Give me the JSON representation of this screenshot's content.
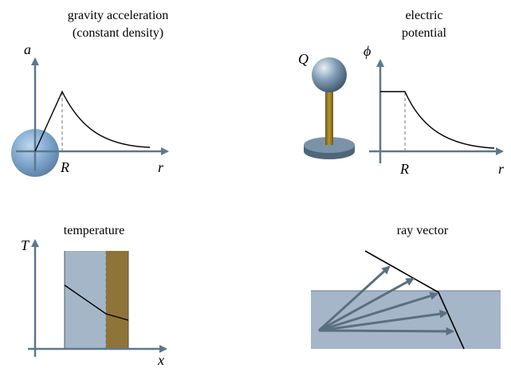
{
  "panels": [
    {
      "title_lines": [
        "gravity acceleration",
        "(constant density)"
      ],
      "y_label": "a",
      "x_label": "r",
      "marker": "R"
    },
    {
      "title_lines": [
        "electric",
        "potential"
      ],
      "y_label": "ϕ",
      "x_label": "r",
      "marker": "R",
      "charge": "Q"
    },
    {
      "title_lines": [
        "temperature"
      ],
      "y_label": "T",
      "x_label": "x"
    },
    {
      "title_lines": [
        "ray vector"
      ]
    }
  ]
}
